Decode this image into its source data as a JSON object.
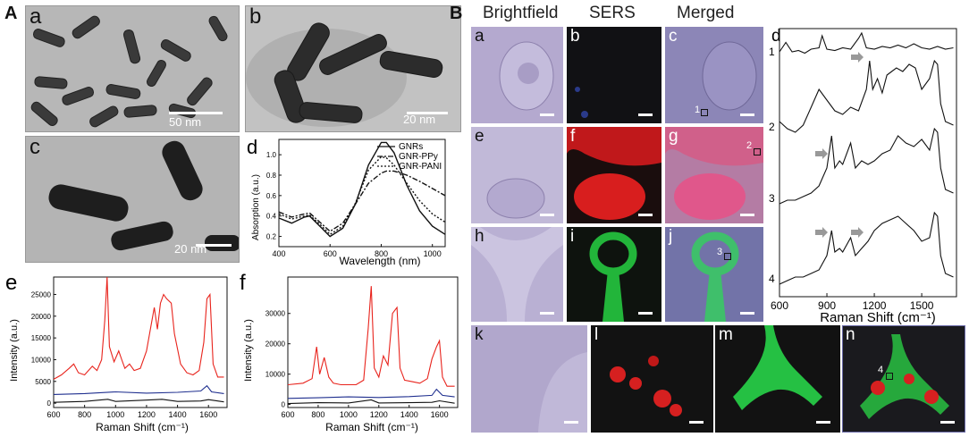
{
  "partA": {
    "label": "A",
    "tem": [
      {
        "letter": "a",
        "scale": "50 nm"
      },
      {
        "letter": "b",
        "scale": "20 nm"
      },
      {
        "letter": "c",
        "scale": "20 nm"
      }
    ],
    "absorption": {
      "letter": "d",
      "ylabel": "Absorption (a.u.)",
      "xlabel": "Wavelength (nm)",
      "xticks": [
        "400",
        "600",
        "800",
        "1000"
      ],
      "yticks": [
        "0.2",
        "0.4",
        "0.6",
        "0.8",
        "1.0"
      ],
      "legend": [
        "GNRs",
        "GNR-PPy",
        "GNR-PANI"
      ]
    },
    "raman_e": {
      "letter": "e",
      "ylabel": "Intensity (a.u.)",
      "xlabel": "Raman Shift (cm⁻¹)",
      "xticks": [
        "600",
        "800",
        "1000",
        "1200",
        "1400",
        "1600"
      ],
      "yticks": [
        "0",
        "5000",
        "10000",
        "15000",
        "20000",
        "25000"
      ]
    },
    "raman_f": {
      "letter": "f",
      "ylabel": "Intensity (a.u.)",
      "xlabel": "Raman Shift (cm⁻¹)",
      "xticks": [
        "600",
        "800",
        "1000",
        "1200",
        "1400",
        "1600"
      ],
      "yticks": [
        "0",
        "10000",
        "20000",
        "30000"
      ]
    }
  },
  "partB": {
    "label": "B",
    "headers": [
      "Brightfield",
      "SERS",
      "Merged"
    ],
    "cells": [
      "a",
      "b",
      "c",
      "e",
      "f",
      "g",
      "h",
      "i",
      "j",
      "k",
      "l",
      "m",
      "n"
    ],
    "rois": [
      "1",
      "2",
      "3",
      "4"
    ],
    "spectra": {
      "letter": "d",
      "xlabel": "Raman Shift (cm⁻¹)",
      "xticks": [
        "600",
        "900",
        "1200",
        "1500"
      ],
      "trace_labels": [
        "1",
        "2",
        "3",
        "4"
      ]
    }
  },
  "chart_data": [
    {
      "type": "line",
      "panel": "A-d",
      "xlabel": "Wavelength (nm)",
      "ylabel": "Absorption (a.u.)",
      "xlim": [
        400,
        1050
      ],
      "ylim": [
        0.1,
        1.15
      ],
      "series": [
        {
          "name": "GNRs",
          "x": [
            400,
            450,
            500,
            520,
            560,
            600,
            650,
            700,
            750,
            800,
            820,
            850,
            900,
            950,
            1000,
            1050
          ],
          "y": [
            0.38,
            0.33,
            0.39,
            0.4,
            0.3,
            0.2,
            0.28,
            0.52,
            0.9,
            1.12,
            1.12,
            1.02,
            0.7,
            0.45,
            0.3,
            0.22
          ]
        },
        {
          "name": "GNR-PPy",
          "x": [
            400,
            450,
            500,
            520,
            560,
            600,
            650,
            700,
            750,
            800,
            820,
            850,
            900,
            950,
            1000,
            1050
          ],
          "y": [
            0.44,
            0.39,
            0.42,
            0.43,
            0.34,
            0.25,
            0.33,
            0.52,
            0.72,
            0.82,
            0.84,
            0.84,
            0.8,
            0.74,
            0.67,
            0.6
          ]
        },
        {
          "name": "GNR-PANI",
          "x": [
            400,
            450,
            500,
            520,
            560,
            600,
            650,
            700,
            750,
            800,
            820,
            850,
            900,
            950,
            1000,
            1050
          ],
          "y": [
            0.42,
            0.37,
            0.4,
            0.41,
            0.32,
            0.22,
            0.3,
            0.53,
            0.85,
            0.98,
            0.97,
            0.9,
            0.72,
            0.55,
            0.42,
            0.34
          ]
        }
      ]
    },
    {
      "type": "line",
      "panel": "A-e",
      "xlabel": "Raman Shift (cm⁻¹)",
      "ylabel": "Intensity (a.u.)",
      "xlim": [
        600,
        1720
      ],
      "ylim": [
        -1000,
        29000
      ],
      "series": [
        {
          "color": "#e8231c",
          "x": [
            600,
            650,
            700,
            730,
            760,
            800,
            850,
            880,
            910,
            930,
            945,
            960,
            990,
            1020,
            1040,
            1060,
            1090,
            1120,
            1160,
            1200,
            1230,
            1250,
            1270,
            1290,
            1310,
            1330,
            1360,
            1380,
            1420,
            1460,
            1500,
            1540,
            1570,
            1590,
            1610,
            1630,
            1660,
            1700
          ],
          "y": [
            5500,
            6500,
            8000,
            9000,
            7000,
            6500,
            8500,
            7500,
            10000,
            19000,
            29000,
            13000,
            9500,
            12000,
            10000,
            8000,
            9000,
            7500,
            8000,
            12000,
            18000,
            22000,
            17000,
            23000,
            25000,
            24000,
            23000,
            16000,
            9000,
            7000,
            6500,
            7500,
            14000,
            24000,
            25000,
            9000,
            6000,
            6000
          ]
        },
        {
          "color": "#1f2f8f",
          "x": [
            600,
            800,
            1000,
            1200,
            1400,
            1550,
            1590,
            1620,
            1700
          ],
          "y": [
            2000,
            2200,
            2600,
            2300,
            2500,
            2800,
            4000,
            2600,
            2200
          ]
        },
        {
          "color": "#111111",
          "x": [
            600,
            800,
            950,
            1000,
            1200,
            1300,
            1400,
            1550,
            1600,
            1700
          ],
          "y": [
            200,
            400,
            900,
            400,
            700,
            900,
            400,
            500,
            800,
            300
          ]
        }
      ]
    },
    {
      "type": "line",
      "panel": "A-f",
      "xlabel": "Raman Shift (cm⁻¹)",
      "ylabel": "Intensity (a.u.)",
      "xlim": [
        600,
        1720
      ],
      "ylim": [
        -1000,
        42000
      ],
      "series": [
        {
          "color": "#e8231c",
          "x": [
            600,
            700,
            760,
            790,
            810,
            840,
            870,
            900,
            950,
            1050,
            1100,
            1130,
            1150,
            1170,
            1200,
            1230,
            1260,
            1290,
            1320,
            1340,
            1370,
            1420,
            1470,
            1520,
            1550,
            1580,
            1600,
            1620,
            1650,
            1700
          ],
          "y": [
            6500,
            7000,
            8500,
            19000,
            10000,
            15500,
            9000,
            7000,
            6500,
            6500,
            8000,
            25000,
            39000,
            12000,
            9000,
            16000,
            13000,
            30000,
            32000,
            12000,
            8000,
            7500,
            7000,
            8500,
            15000,
            19000,
            21000,
            9000,
            6000,
            6000
          ]
        },
        {
          "color": "#1f2f8f",
          "x": [
            600,
            800,
            1000,
            1200,
            1400,
            1550,
            1580,
            1620,
            1700
          ],
          "y": [
            2000,
            2200,
            2500,
            2300,
            2600,
            3000,
            5000,
            3000,
            2500
          ]
        },
        {
          "color": "#111111",
          "x": [
            600,
            800,
            1000,
            1150,
            1200,
            1400,
            1550,
            1600,
            1700
          ],
          "y": [
            300,
            600,
            500,
            1500,
            500,
            600,
            700,
            1200,
            400
          ]
        }
      ]
    },
    {
      "type": "line",
      "panel": "B-d",
      "xlabel": "Raman Shift (cm⁻¹)",
      "xlim": [
        600,
        1720
      ],
      "series": [
        {
          "name": "1",
          "x": [
            600,
            640,
            680,
            720,
            760,
            800,
            850,
            870,
            900,
            950,
            1000,
            1050,
            1100,
            1120,
            1150,
            1200,
            1250,
            1300,
            1350,
            1400,
            1450,
            1500,
            1550,
            1600,
            1650,
            1700
          ],
          "y": [
            0.2,
            0.55,
            0.2,
            0.25,
            0.15,
            0.3,
            0.35,
            0.8,
            0.3,
            0.25,
            0.35,
            0.3,
            0.7,
            0.9,
            0.35,
            0.3,
            0.4,
            0.35,
            0.45,
            0.35,
            0.5,
            0.35,
            0.3,
            0.4,
            0.3,
            0.35
          ]
        },
        {
          "name": "2",
          "x": [
            600,
            650,
            700,
            750,
            800,
            850,
            900,
            950,
            1000,
            1050,
            1100,
            1150,
            1170,
            1190,
            1220,
            1250,
            1280,
            1310,
            1340,
            1380,
            1420,
            1460,
            1500,
            1550,
            1580,
            1600,
            1620,
            1650,
            1700
          ],
          "y": [
            0.15,
            0.05,
            0.0,
            0.1,
            0.35,
            0.6,
            0.45,
            0.3,
            0.25,
            0.35,
            0.3,
            0.6,
            1.0,
            0.6,
            0.75,
            0.55,
            0.8,
            0.85,
            0.9,
            0.85,
            0.95,
            0.9,
            0.6,
            0.75,
            1.0,
            0.95,
            0.4,
            0.15,
            0.1
          ]
        },
        {
          "name": "3",
          "x": [
            600,
            650,
            700,
            750,
            800,
            850,
            900,
            930,
            950,
            980,
            1000,
            1050,
            1080,
            1120,
            1160,
            1200,
            1250,
            1300,
            1350,
            1400,
            1450,
            1500,
            1550,
            1580,
            1600,
            1620,
            1650,
            1700
          ],
          "y": [
            0.0,
            0.05,
            0.05,
            0.1,
            0.15,
            0.25,
            0.5,
            0.95,
            0.5,
            0.6,
            0.55,
            0.85,
            0.5,
            0.6,
            0.55,
            0.6,
            0.7,
            0.75,
            0.95,
            0.85,
            0.8,
            0.9,
            0.75,
            1.05,
            1.0,
            0.5,
            0.2,
            0.15
          ]
        },
        {
          "name": "4",
          "x": [
            600,
            650,
            700,
            750,
            800,
            850,
            900,
            930,
            950,
            980,
            1000,
            1050,
            1080,
            1120,
            1160,
            1200,
            1250,
            1300,
            1350,
            1400,
            1450,
            1500,
            1550,
            1580,
            1600,
            1620,
            1650,
            1700
          ],
          "y": [
            0.0,
            0.05,
            0.1,
            0.1,
            0.15,
            0.2,
            0.4,
            0.75,
            0.45,
            0.5,
            0.45,
            0.65,
            0.4,
            0.5,
            0.6,
            0.75,
            0.85,
            0.9,
            0.95,
            0.85,
            0.75,
            0.6,
            0.65,
            1.0,
            0.95,
            0.4,
            0.15,
            0.1
          ]
        }
      ]
    }
  ]
}
